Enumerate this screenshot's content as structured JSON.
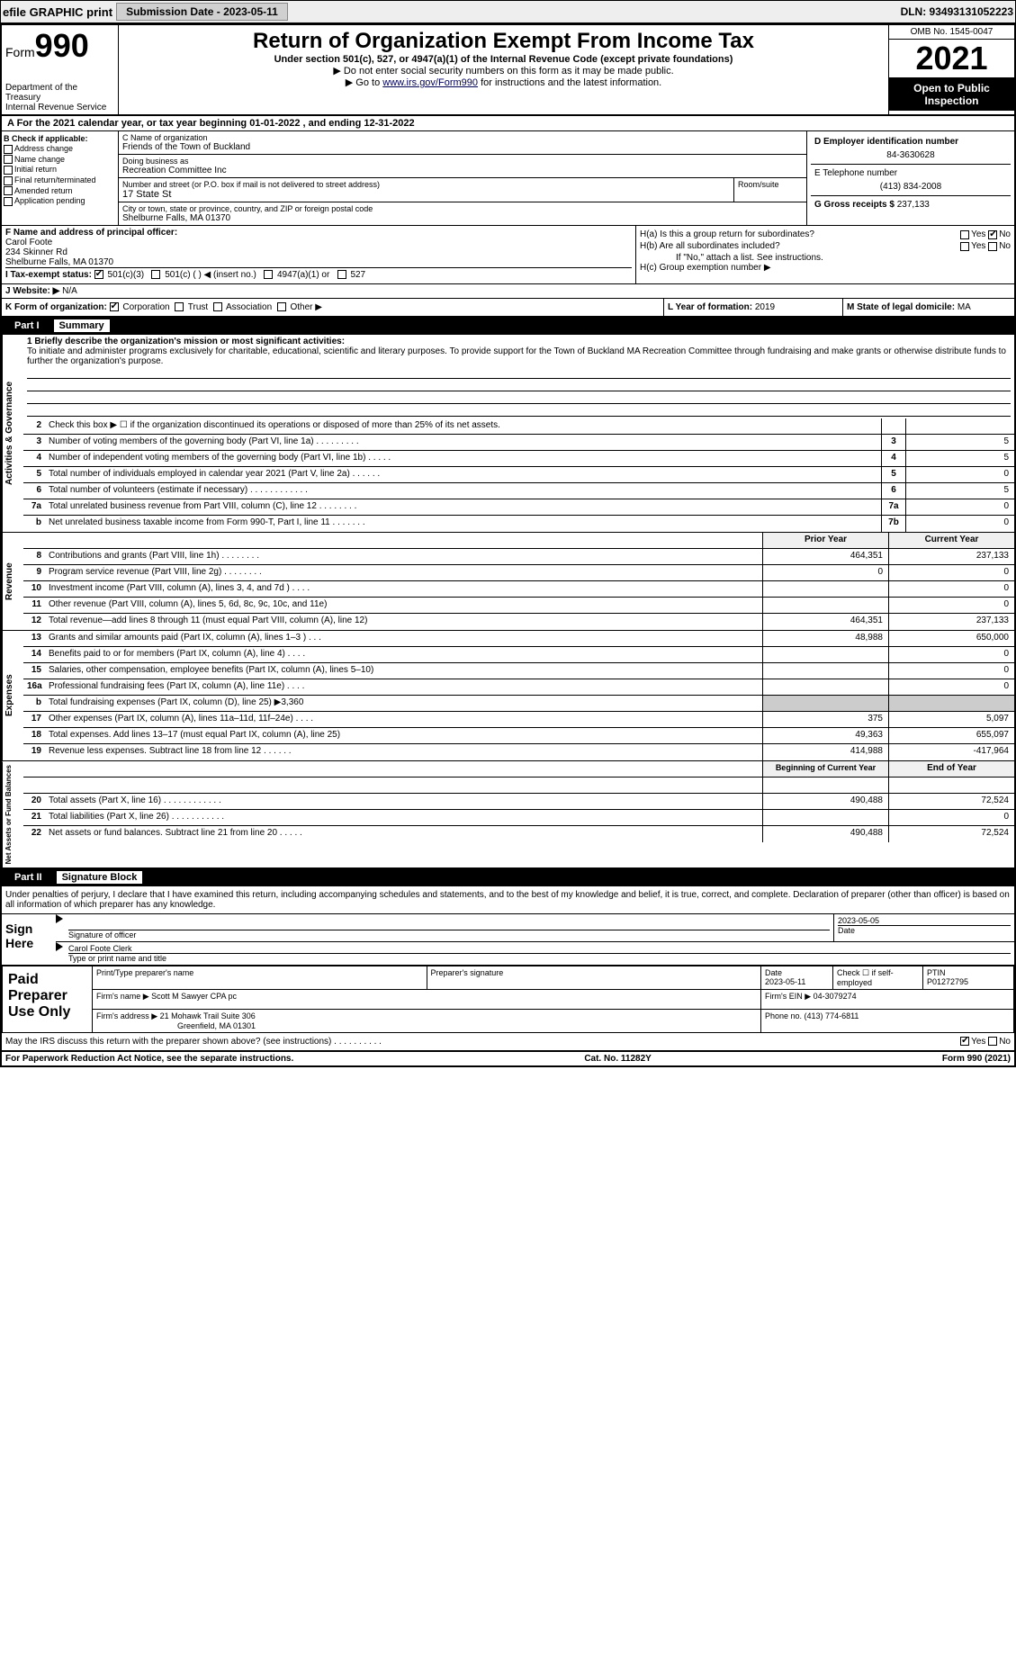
{
  "topbar": {
    "efile_label": "efile GRAPHIC print",
    "submission_label": "Submission Date - 2023-05-11",
    "dln": "DLN: 93493131052223"
  },
  "header": {
    "form_label": "Form",
    "form_num": "990",
    "dept": "Department of the Treasury",
    "irs": "Internal Revenue Service",
    "title": "Return of Organization Exempt From Income Tax",
    "subtitle": "Under section 501(c), 527, or 4947(a)(1) of the Internal Revenue Code (except private foundations)",
    "note1": "▶ Do not enter social security numbers on this form as it may be made public.",
    "note2_pre": "▶ Go to ",
    "note2_link": "www.irs.gov/Form990",
    "note2_post": " for instructions and the latest information.",
    "omb": "OMB No. 1545-0047",
    "year": "2021",
    "inspect": "Open to Public Inspection"
  },
  "rowA": "A For the 2021 calendar year, or tax year beginning 01-01-2022    , and ending 12-31-2022",
  "colB": {
    "title": "B Check if applicable:",
    "items": [
      "Address change",
      "Name change",
      "Initial return",
      "Final return/terminated",
      "Amended return",
      "Application pending"
    ]
  },
  "colC": {
    "name_label": "C Name of organization",
    "name": "Friends of the Town of Buckland",
    "dba_label": "Doing business as",
    "dba": "Recreation Committee Inc",
    "street_label": "Number and street (or P.O. box if mail is not delivered to street address)",
    "room_label": "Room/suite",
    "street": "17 State St",
    "city_label": "City or town, state or province, country, and ZIP or foreign postal code",
    "city": "Shelburne Falls, MA  01370"
  },
  "colD": {
    "ein_label": "D Employer identification number",
    "ein": "84-3630628",
    "phone_label": "E Telephone number",
    "phone": "(413) 834-2008",
    "gross_label": "G Gross receipts $ ",
    "gross": "237,133"
  },
  "colF": {
    "label": "F  Name and address of principal officer:",
    "name": "Carol Foote",
    "addr1": "234 Skinner Rd",
    "addr2": "Shelburne Falls, MA  01370"
  },
  "colH": {
    "ha": "H(a)  Is this a group return for subordinates?",
    "hb": "H(b)  Are all subordinates included?",
    "hb_note": "If \"No,\" attach a list. See instructions.",
    "hc": "H(c)  Group exemption number ▶",
    "yes": "Yes",
    "no": "No"
  },
  "rowI": {
    "label": "I   Tax-exempt status:",
    "o1": "501(c)(3)",
    "o2": "501(c) (   ) ◀ (insert no.)",
    "o3": "4947(a)(1) or",
    "o4": "527"
  },
  "rowJ": {
    "label": "J   Website: ▶",
    "val": " N/A"
  },
  "rowK": {
    "label": "K Form of organization:",
    "o1": "Corporation",
    "o2": "Trust",
    "o3": "Association",
    "o4": "Other ▶"
  },
  "rowL": {
    "label": "L Year of formation: ",
    "val": "2019"
  },
  "rowM": {
    "label": "M State of legal domicile: ",
    "val": "MA"
  },
  "part1": {
    "label": "Part I",
    "title": "Summary"
  },
  "mission": {
    "q": "1  Briefly describe the organization's mission or most significant activities:",
    "text": "To initiate and administer programs exclusively for charitable, educational, scientific and literary purposes. To provide support for the Town of Buckland MA Recreation Committee through fundraising and make grants or otherwise distribute funds to further the organization's purpose."
  },
  "lines_gov": [
    {
      "n": "2",
      "t": "Check this box ▶ ☐ if the organization discontinued its operations or disposed of more than 25% of its net assets.",
      "k": "",
      "v": ""
    },
    {
      "n": "3",
      "t": "Number of voting members of the governing body (Part VI, line 1a)   .    .    .    .    .    .    .    .    .",
      "k": "3",
      "v": "5"
    },
    {
      "n": "4",
      "t": "Number of independent voting members of the governing body (Part VI, line 1b)   .    .    .    .    .",
      "k": "4",
      "v": "5"
    },
    {
      "n": "5",
      "t": "Total number of individuals employed in calendar year 2021 (Part V, line 2a)   .    .    .    .    .    .",
      "k": "5",
      "v": "0"
    },
    {
      "n": "6",
      "t": "Total number of volunteers (estimate if necessary)   .    .    .    .    .    .    .    .    .    .    .    .",
      "k": "6",
      "v": "5"
    },
    {
      "n": "7a",
      "t": "Total unrelated business revenue from Part VIII, column (C), line 12   .    .    .    .    .    .    .    .",
      "k": "7a",
      "v": "0"
    },
    {
      "n": "b",
      "t": "Net unrelated business taxable income from Form 990-T, Part I, line 11   .    .    .    .    .    .    .",
      "k": "7b",
      "v": "0"
    }
  ],
  "col_hdr": {
    "prior": "Prior Year",
    "curr": "Current Year"
  },
  "lines_rev": [
    {
      "n": "8",
      "t": "Contributions and grants (Part VIII, line 1h)   .    .    .    .    .    .    .    .",
      "p": "464,351",
      "c": "237,133"
    },
    {
      "n": "9",
      "t": "Program service revenue (Part VIII, line 2g)   .    .    .    .    .    .    .    .",
      "p": "0",
      "c": "0"
    },
    {
      "n": "10",
      "t": "Investment income (Part VIII, column (A), lines 3, 4, and 7d )   .    .    .    .",
      "p": "",
      "c": "0"
    },
    {
      "n": "11",
      "t": "Other revenue (Part VIII, column (A), lines 5, 6d, 8c, 9c, 10c, and 11e)",
      "p": "",
      "c": "0"
    },
    {
      "n": "12",
      "t": "Total revenue—add lines 8 through 11 (must equal Part VIII, column (A), line 12)",
      "p": "464,351",
      "c": "237,133"
    }
  ],
  "lines_exp": [
    {
      "n": "13",
      "t": "Grants and similar amounts paid (Part IX, column (A), lines 1–3 )   .    .    .",
      "p": "48,988",
      "c": "650,000"
    },
    {
      "n": "14",
      "t": "Benefits paid to or for members (Part IX, column (A), line 4)   .    .    .    .",
      "p": "",
      "c": "0"
    },
    {
      "n": "15",
      "t": "Salaries, other compensation, employee benefits (Part IX, column (A), lines 5–10)",
      "p": "",
      "c": "0"
    },
    {
      "n": "16a",
      "t": "Professional fundraising fees (Part IX, column (A), line 11e)   .    .    .    .",
      "p": "",
      "c": "0"
    },
    {
      "n": "b",
      "t": "Total fundraising expenses (Part IX, column (D), line 25) ▶3,360",
      "p": "gray",
      "c": "gray"
    },
    {
      "n": "17",
      "t": "Other expenses (Part IX, column (A), lines 11a–11d, 11f–24e)   .    .    .    .",
      "p": "375",
      "c": "5,097"
    },
    {
      "n": "18",
      "t": "Total expenses. Add lines 13–17 (must equal Part IX, column (A), line 25)",
      "p": "49,363",
      "c": "655,097"
    },
    {
      "n": "19",
      "t": "Revenue less expenses. Subtract line 18 from line 12   .    .    .    .    .    .",
      "p": "414,988",
      "c": "-417,964"
    }
  ],
  "col_hdr2": {
    "prior": "Beginning of Current Year",
    "curr": "End of Year"
  },
  "lines_net": [
    {
      "n": "",
      "t": "",
      "p": "",
      "c": ""
    },
    {
      "n": "20",
      "t": "Total assets (Part X, line 16)   .    .    .    .    .    .    .    .    .    .    .    .",
      "p": "490,488",
      "c": "72,524"
    },
    {
      "n": "21",
      "t": "Total liabilities (Part X, line 26)   .    .    .    .    .    .    .    .    .    .    .",
      "p": "",
      "c": "0"
    },
    {
      "n": "22",
      "t": "Net assets or fund balances. Subtract line 21 from line 20   .    .    .    .    .",
      "p": "490,488",
      "c": "72,524"
    }
  ],
  "vtabs": {
    "gov": "Activities & Governance",
    "rev": "Revenue",
    "exp": "Expenses",
    "net": "Net Assets or Fund Balances"
  },
  "part2": {
    "label": "Part II",
    "title": "Signature Block"
  },
  "sig": {
    "penalty": "Under penalties of perjury, I declare that I have examined this return, including accompanying schedules and statements, and to the best of my knowledge and belief, it is true, correct, and complete. Declaration of preparer (other than officer) is based on all information of which preparer has any knowledge.",
    "sign_here": "Sign Here",
    "sig_officer": "Signature of officer",
    "sig_date": "2023-05-05",
    "date_lbl": "Date",
    "name": "Carol Foote  Clerk",
    "type_lbl": "Type or print name and title"
  },
  "paid": {
    "label": "Paid Preparer Use Only",
    "h1": "Print/Type preparer's name",
    "h2": "Preparer's signature",
    "h3": "Date",
    "h4": "Check ☐ if self-employed",
    "h5": "PTIN",
    "date": "2023-05-11",
    "ptin": "P01272795",
    "firm_lbl": "Firm's name      ▶ ",
    "firm": "Scott M Sawyer CPA pc",
    "ein_lbl": "Firm's EIN ▶ ",
    "ein": "04-3079274",
    "addr_lbl": "Firm's address ▶ ",
    "addr1": "21 Mohawk Trail Suite 306",
    "addr2": "Greenfield, MA  01301",
    "phone_lbl": "Phone no. ",
    "phone": "(413) 774-6811"
  },
  "may_discuss": "May the IRS discuss this return with the preparer shown above? (see instructions)   .    .    .    .    .    .    .    .    .    .",
  "footer": {
    "pra": "For Paperwork Reduction Act Notice, see the separate instructions.",
    "cat": "Cat. No. 11282Y",
    "form": "Form 990 (2021)"
  }
}
